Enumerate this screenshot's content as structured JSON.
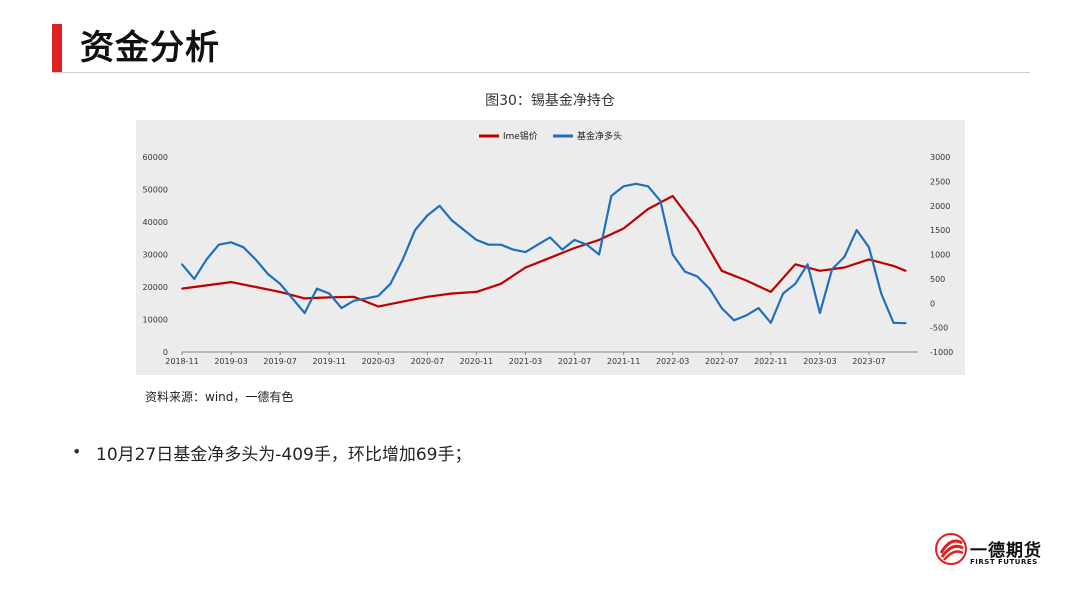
{
  "header": {
    "title": "资金分析"
  },
  "figure": {
    "caption": "图30：锡基金净持仓"
  },
  "source": "资料来源：wind，一德有色",
  "bullets": [
    "10月27日基金净多头为-409手，环比增加69手；"
  ],
  "logo": {
    "name_cn": "一德期货",
    "name_en": "FIRST FUTURES"
  },
  "colors": {
    "accent": "#e02020",
    "lme_series": "#c00000",
    "fund_series": "#1f6fbf",
    "chart_bg": "#ececec"
  },
  "chart_data": {
    "type": "line",
    "title": "",
    "xlabel": "",
    "ylabel": "",
    "y2label": "",
    "x_ticks": [
      "2018-11",
      "2019-03",
      "2019-07",
      "2019-11",
      "2020-03",
      "2020-07",
      "2020-11",
      "2021-03",
      "2021-07",
      "2021-11",
      "2022-03",
      "2022-07",
      "2022-11",
      "2023-03",
      "2023-07"
    ],
    "y_left": {
      "ticks": [
        0,
        10000,
        20000,
        30000,
        40000,
        50000,
        60000
      ],
      "range": [
        0,
        60000
      ]
    },
    "y_right": {
      "ticks": [
        -1000,
        -500,
        0,
        500,
        1000,
        1500,
        2000,
        2500,
        3000
      ],
      "range": [
        -1000,
        3000
      ]
    },
    "legend": {
      "position": "top-center"
    },
    "grid": false,
    "series": [
      {
        "name": "lme锡价",
        "axis": "left",
        "color": "#c00000",
        "x": [
          "2018-11",
          "2019-01",
          "2019-03",
          "2019-05",
          "2019-07",
          "2019-09",
          "2019-11",
          "2020-01",
          "2020-03",
          "2020-05",
          "2020-07",
          "2020-09",
          "2020-11",
          "2021-01",
          "2021-03",
          "2021-05",
          "2021-07",
          "2021-09",
          "2021-11",
          "2022-01",
          "2022-03",
          "2022-05",
          "2022-07",
          "2022-09",
          "2022-11",
          "2023-01",
          "2023-03",
          "2023-05",
          "2023-07",
          "2023-09",
          "2023-10"
        ],
        "values": [
          19500,
          20500,
          21500,
          20000,
          18500,
          16500,
          16800,
          17000,
          14000,
          15500,
          17000,
          18000,
          18500,
          21000,
          26000,
          29000,
          32000,
          34500,
          38000,
          44000,
          48000,
          38000,
          25000,
          22000,
          18500,
          27000,
          25000,
          26000,
          28500,
          26500,
          25000
        ]
      },
      {
        "name": "基金净多头",
        "axis": "right",
        "color": "#1f6fbf",
        "x": [
          "2018-11",
          "2018-12",
          "2019-01",
          "2019-02",
          "2019-03",
          "2019-04",
          "2019-05",
          "2019-06",
          "2019-07",
          "2019-08",
          "2019-09",
          "2019-10",
          "2019-11",
          "2019-12",
          "2020-01",
          "2020-02",
          "2020-03",
          "2020-04",
          "2020-05",
          "2020-06",
          "2020-07",
          "2020-08",
          "2020-09",
          "2020-10",
          "2020-11",
          "2020-12",
          "2021-01",
          "2021-02",
          "2021-03",
          "2021-04",
          "2021-05",
          "2021-06",
          "2021-07",
          "2021-08",
          "2021-09",
          "2021-10",
          "2021-11",
          "2021-12",
          "2022-01",
          "2022-02",
          "2022-03",
          "2022-04",
          "2022-05",
          "2022-06",
          "2022-07",
          "2022-08",
          "2022-09",
          "2022-10",
          "2022-11",
          "2022-12",
          "2023-01",
          "2023-02",
          "2023-03",
          "2023-04",
          "2023-05",
          "2023-06",
          "2023-07",
          "2023-08",
          "2023-09",
          "2023-10"
        ],
        "values": [
          800,
          500,
          900,
          1200,
          1250,
          1150,
          900,
          600,
          400,
          100,
          -200,
          300,
          200,
          -100,
          50,
          100,
          150,
          400,
          900,
          1500,
          1800,
          2000,
          1700,
          1500,
          1300,
          1200,
          1200,
          1100,
          1050,
          1200,
          1350,
          1100,
          1300,
          1200,
          1000,
          2200,
          2400,
          2450,
          2400,
          2100,
          1000,
          650,
          550,
          300,
          -100,
          -350,
          -250,
          -100,
          -400,
          200,
          400,
          800,
          -200,
          700,
          950,
          1500,
          1150,
          200,
          -400,
          -409
        ]
      }
    ]
  }
}
